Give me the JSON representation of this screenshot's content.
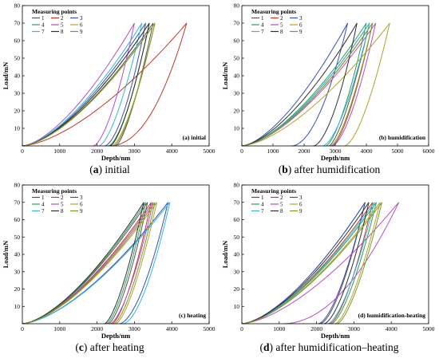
{
  "chart_data": [
    {
      "type": "line",
      "panel_key": "a",
      "caption_letter": "a",
      "caption_text": " initial",
      "annotation": "(a) initial",
      "legend_title": "Measuring points",
      "show_legend": true,
      "xlabel": "Depth/nm",
      "ylabel": "Load/mN",
      "xlim": [
        0,
        5000
      ],
      "ylim": [
        0,
        80
      ],
      "xticks": [
        0,
        1000,
        2000,
        3000,
        4000,
        5000
      ],
      "yticks": [
        10,
        20,
        30,
        40,
        50,
        60,
        70,
        80
      ],
      "series": [
        {
          "name": "1",
          "color": "#555555",
          "peak_depth": 3500,
          "unload_end": 2500,
          "steep": 1.45
        },
        {
          "name": "2",
          "color": "#c0392b",
          "peak_depth": 4400,
          "unload_end": 2300,
          "steep": 2.2
        },
        {
          "name": "3",
          "color": "#3a4fb0",
          "peak_depth": 3300,
          "unload_end": 2200,
          "steep": 1.7
        },
        {
          "name": "4",
          "color": "#2e9d5a",
          "peak_depth": 3400,
          "unload_end": 2300,
          "steep": 1.6
        },
        {
          "name": "5",
          "color": "#b24fc6",
          "peak_depth": 3000,
          "unload_end": 1900,
          "steep": 1.6
        },
        {
          "name": "6",
          "color": "#b2a32e",
          "peak_depth": 3550,
          "unload_end": 2400,
          "steep": 1.5
        },
        {
          "name": "7",
          "color": "#30b8d8",
          "peak_depth": 3200,
          "unload_end": 2050,
          "steep": 1.55
        },
        {
          "name": "8",
          "color": "#303030",
          "peak_depth": 3400,
          "unload_end": 2350,
          "steep": 1.5
        },
        {
          "name": "9",
          "color": "#7d9a1e",
          "peak_depth": 3550,
          "unload_end": 2450,
          "steep": 1.45
        }
      ],
      "peak_load": 70
    },
    {
      "type": "line",
      "panel_key": "b",
      "caption_letter": "b",
      "caption_text": " after humidification",
      "annotation": "(b) humidification",
      "legend_title": "Measuring points",
      "show_legend": true,
      "xlabel": "Depth/nm",
      "ylabel": "Load/mN",
      "xlim": [
        0,
        6000
      ],
      "ylim": [
        0,
        80
      ],
      "xticks": [
        0,
        1000,
        2000,
        3000,
        4000,
        5000,
        6000
      ],
      "yticks": [
        10,
        20,
        30,
        40,
        50,
        60,
        70,
        80
      ],
      "series": [
        {
          "name": "1",
          "color": "#555555",
          "peak_depth": 4100,
          "unload_end": 2800,
          "steep": 1.45
        },
        {
          "name": "2",
          "color": "#c0392b",
          "peak_depth": 4200,
          "unload_end": 2900,
          "steep": 1.5
        },
        {
          "name": "3",
          "color": "#3a4fb0",
          "peak_depth": 3400,
          "unload_end": 1600,
          "steep": 1.9
        },
        {
          "name": "4",
          "color": "#2e9d5a",
          "peak_depth": 4000,
          "unload_end": 2700,
          "steep": 1.5
        },
        {
          "name": "5",
          "color": "#b24fc6",
          "peak_depth": 4300,
          "unload_end": 2900,
          "steep": 1.6
        },
        {
          "name": "6",
          "color": "#b2a32e",
          "peak_depth": 4750,
          "unload_end": 3300,
          "steep": 1.6
        },
        {
          "name": "7",
          "color": "#30b8d8",
          "peak_depth": 4100,
          "unload_end": 2600,
          "steep": 1.6
        },
        {
          "name": "8",
          "color": "#303030",
          "peak_depth": 3700,
          "unload_end": 2300,
          "steep": 1.7
        },
        {
          "name": "9",
          "color": "#7d9a1e",
          "peak_depth": 4200,
          "unload_end": 2850,
          "steep": 1.5
        }
      ],
      "peak_load": 70
    },
    {
      "type": "line",
      "panel_key": "c",
      "caption_letter": "c",
      "caption_text": " after heating",
      "annotation": "(c) heating",
      "legend_title": "Measuring points",
      "show_legend": true,
      "xlabel": "Depth/nm",
      "ylabel": "Load/mN",
      "xlim": [
        0,
        5000
      ],
      "ylim": [
        0,
        80
      ],
      "xticks": [
        0,
        1000,
        2000,
        3000,
        4000,
        5000
      ],
      "yticks": [
        10,
        20,
        30,
        40,
        50,
        60,
        70,
        80
      ],
      "series": [
        {
          "name": "1",
          "color": "#555555",
          "peak_depth": 3350,
          "unload_end": 2300,
          "steep": 1.5
        },
        {
          "name": "2",
          "color": "#c0392b",
          "peak_depth": 3450,
          "unload_end": 2400,
          "steep": 1.5
        },
        {
          "name": "3",
          "color": "#3a4fb0",
          "peak_depth": 3900,
          "unload_end": 2600,
          "steep": 1.7
        },
        {
          "name": "4",
          "color": "#2e9d5a",
          "peak_depth": 3300,
          "unload_end": 2250,
          "steep": 1.5
        },
        {
          "name": "5",
          "color": "#b24fc6",
          "peak_depth": 3500,
          "unload_end": 2350,
          "steep": 1.55
        },
        {
          "name": "6",
          "color": "#b2a32e",
          "peak_depth": 3600,
          "unload_end": 2500,
          "steep": 1.5
        },
        {
          "name": "7",
          "color": "#30b8d8",
          "peak_depth": 3950,
          "unload_end": 2700,
          "steep": 1.7
        },
        {
          "name": "8",
          "color": "#303030",
          "peak_depth": 3250,
          "unload_end": 2200,
          "steep": 1.5
        },
        {
          "name": "9",
          "color": "#7d9a1e",
          "peak_depth": 3550,
          "unload_end": 2450,
          "steep": 1.5
        }
      ],
      "peak_load": 70
    },
    {
      "type": "line",
      "panel_key": "d",
      "caption_letter": "d",
      "caption_text": " after humidification–heating",
      "annotation": "(d) humidification-heating",
      "legend_title": "Measuring points",
      "show_legend": true,
      "xlabel": "Depth/nm",
      "ylabel": "Load/mN",
      "xlim": [
        0,
        5000
      ],
      "ylim": [
        0,
        80
      ],
      "xticks": [
        0,
        1000,
        2000,
        3000,
        4000,
        5000
      ],
      "yticks": [
        10,
        20,
        30,
        40,
        50,
        60,
        70,
        80
      ],
      "series": [
        {
          "name": "1",
          "color": "#555555",
          "peak_depth": 3300,
          "unload_end": 2100,
          "steep": 1.6
        },
        {
          "name": "2",
          "color": "#c0392b",
          "peak_depth": 3500,
          "unload_end": 2350,
          "steep": 1.55
        },
        {
          "name": "3",
          "color": "#3a4fb0",
          "peak_depth": 3300,
          "unload_end": 2050,
          "steep": 1.6
        },
        {
          "name": "4",
          "color": "#2e9d5a",
          "peak_depth": 3600,
          "unload_end": 2400,
          "steep": 1.5
        },
        {
          "name": "5",
          "color": "#b24fc6",
          "peak_depth": 4200,
          "unload_end": 1100,
          "steep": 2.0
        },
        {
          "name": "6",
          "color": "#b2a32e",
          "peak_depth": 3700,
          "unload_end": 2500,
          "steep": 1.5
        },
        {
          "name": "7",
          "color": "#30b8d8",
          "peak_depth": 3550,
          "unload_end": 2300,
          "steep": 1.55
        },
        {
          "name": "8",
          "color": "#303030",
          "peak_depth": 3400,
          "unload_end": 2200,
          "steep": 1.6
        },
        {
          "name": "9",
          "color": "#7d9a1e",
          "peak_depth": 3750,
          "unload_end": 2550,
          "steep": 1.5
        }
      ],
      "peak_load": 70
    }
  ]
}
